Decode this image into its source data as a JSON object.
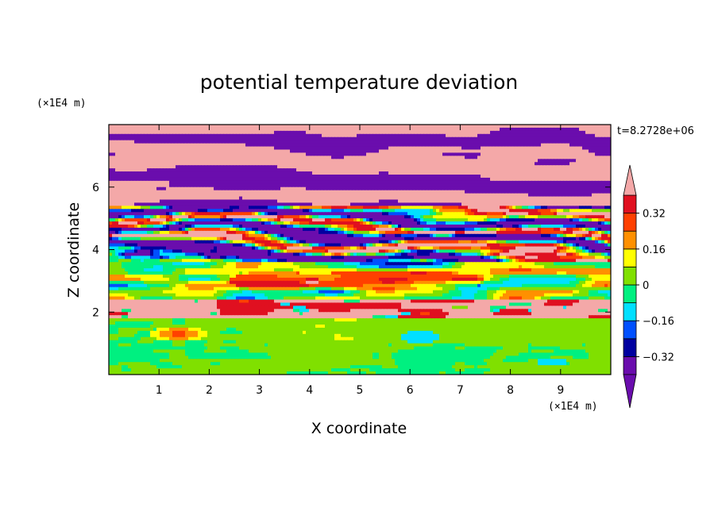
{
  "chart_data": {
    "type": "heatmap",
    "title": "potential temperature deviation",
    "xlabel": "X coordinate",
    "ylabel": "Z coordinate",
    "x_unit": "(×1E4 m)",
    "y_unit": "(×1E4 m)",
    "time_label": "t=8.2728e+06",
    "xlim": [
      0,
      10
    ],
    "ylim": [
      0,
      8
    ],
    "x_ticks": [
      "1",
      "2",
      "3",
      "4",
      "5",
      "6",
      "7",
      "8",
      "9"
    ],
    "y_ticks": [
      "2",
      "4",
      "6"
    ],
    "colorbar": {
      "labels": [
        "0.32",
        "0.16",
        "0",
        "−0.16",
        "−0.32"
      ],
      "label_values": [
        0.32,
        0.16,
        0,
        -0.16,
        -0.32
      ],
      "levels": [
        -0.4,
        -0.32,
        -0.24,
        -0.16,
        -0.08,
        0,
        0.08,
        0.16,
        0.24,
        0.32,
        0.4
      ],
      "colors": [
        "#6a0dad",
        "#0000a0",
        "#0050ff",
        "#00e0ff",
        "#00f080",
        "#80e000",
        "#ffff00",
        "#ff9000",
        "#ff4000",
        "#e01020"
      ],
      "over_color": "#f4a8a8",
      "under_color": "#6a0dad",
      "extend": "both"
    },
    "layers": [
      {
        "z_range": [
          0,
          1.8
        ],
        "description_value": 0.02
      },
      {
        "z_range": [
          1.8,
          2.4
        ],
        "description_value": 0.45
      },
      {
        "z_range": [
          2.4,
          3.6
        ],
        "description_value": 0.2
      },
      {
        "z_range": [
          3.6,
          5.4
        ],
        "description_value": 0.0
      },
      {
        "z_range": [
          5.4,
          8.0
        ],
        "description_value": -0.45
      }
    ]
  }
}
